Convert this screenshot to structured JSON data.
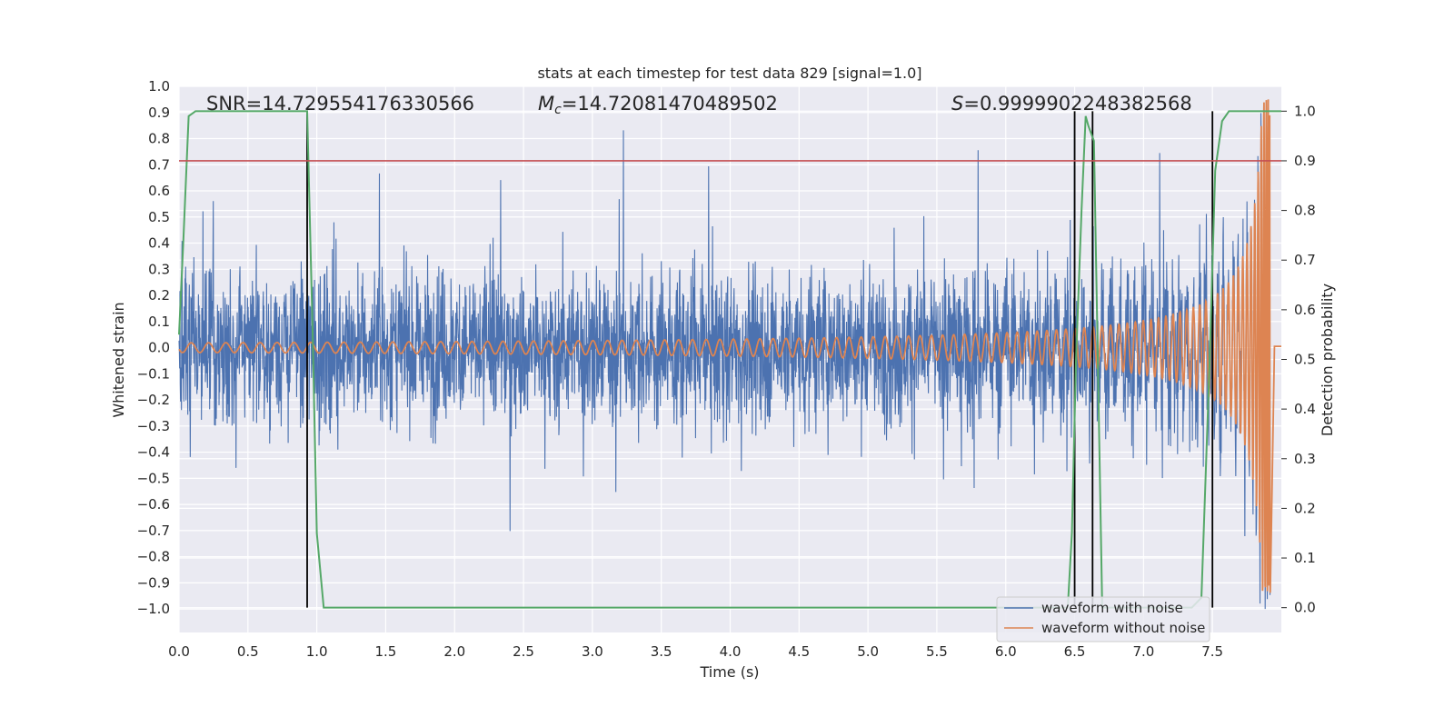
{
  "chart_data": {
    "type": "line",
    "title": "stats at each timestep for test data 829 [signal=1.0]",
    "xlabel": "Time (s)",
    "ylabel": "Whitened strain",
    "y2label": "Detection probability",
    "xlim": [
      0.0,
      8.0
    ],
    "ylim": [
      -1.09,
      1.0
    ],
    "y2lim": [
      -0.05,
      1.05
    ],
    "xticks": [
      "0.0",
      "0.5",
      "1.0",
      "1.5",
      "2.0",
      "2.5",
      "3.0",
      "3.5",
      "4.0",
      "4.5",
      "5.0",
      "5.5",
      "6.0",
      "6.5",
      "7.0",
      "7.5"
    ],
    "yticks": [
      "1.0",
      "0.9",
      "0.8",
      "0.7",
      "0.6",
      "0.5",
      "0.4",
      "0.3",
      "0.2",
      "0.1",
      "0.0",
      "−0.1",
      "−0.2",
      "−0.3",
      "−0.4",
      "−0.5",
      "−0.6",
      "−0.7",
      "−0.8",
      "−0.9",
      "−1.0"
    ],
    "y2ticks": [
      "1.0",
      "0.9",
      "0.8",
      "0.7",
      "0.6",
      "0.5",
      "0.4",
      "0.3",
      "0.2",
      "0.1",
      "0.0"
    ],
    "grid": true,
    "legend_position": "bottom-right",
    "annotations": {
      "snr": "SNR=14.729554176330566",
      "mc": "=14.72081470489502",
      "mc_symbol": "M",
      "mc_sub": "c",
      "s": "=0.9999902248382568",
      "s_symbol": "S"
    },
    "threshold": {
      "axis": "y2",
      "value": 0.9,
      "color": "#c44e52"
    },
    "vertical_lines_x": [
      0.93,
      6.5,
      6.63,
      7.5
    ],
    "series": [
      {
        "name": "waveform with noise",
        "color": "#4c72b0",
        "kind": "noise",
        "typical_amplitude": 0.33,
        "peak_amplitude": 0.89
      },
      {
        "name": "waveform without noise",
        "color": "#dd8452",
        "kind": "chirp",
        "merger_time": 7.92,
        "peak_amplitude": 0.95
      },
      {
        "name": "detection probability",
        "color": "#55a868",
        "axis": "y2",
        "x": [
          0.0,
          0.03,
          0.07,
          0.12,
          0.2,
          0.5,
          0.9,
          0.93,
          0.97,
          1.0,
          1.05,
          1.1,
          2.0,
          4.0,
          6.0,
          6.45,
          6.48,
          6.51,
          6.55,
          6.58,
          6.6,
          6.64,
          6.7,
          7.0,
          7.35,
          7.42,
          7.48,
          7.52,
          7.57,
          7.62,
          8.0
        ],
        "values": [
          0.55,
          0.73,
          0.99,
          1.0,
          1.0,
          1.0,
          1.0,
          1.0,
          0.55,
          0.15,
          0.0,
          0.0,
          0.0,
          0.0,
          0.0,
          0.0,
          0.15,
          0.5,
          0.8,
          0.99,
          0.97,
          0.94,
          0.0,
          0.0,
          0.0,
          0.02,
          0.5,
          0.88,
          0.98,
          1.0,
          1.0
        ]
      }
    ]
  }
}
